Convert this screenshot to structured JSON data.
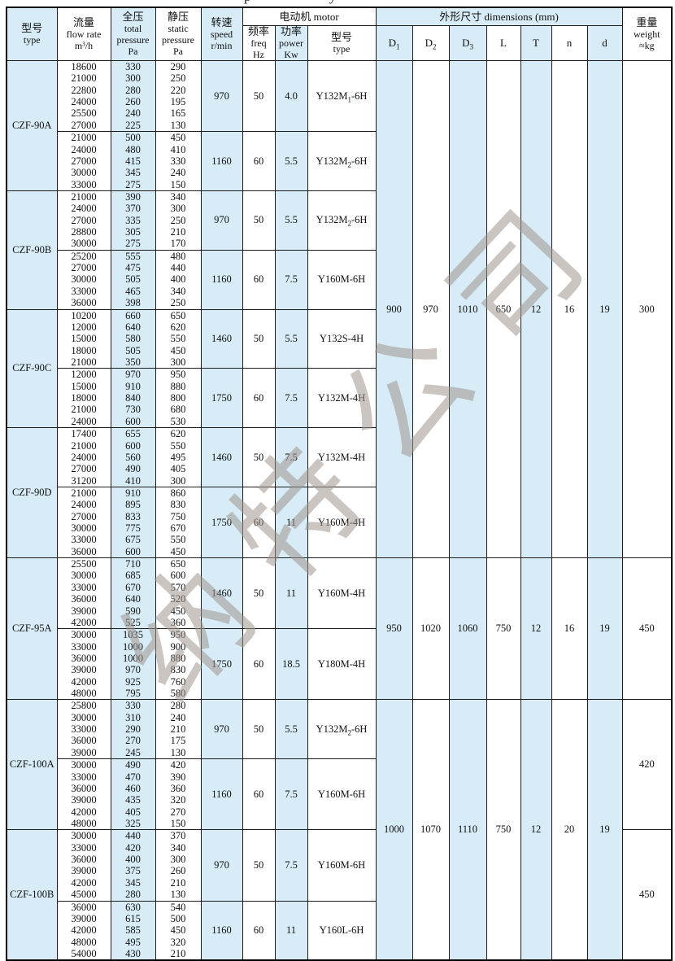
{
  "page": {
    "top_fragment": "p y"
  },
  "colors": {
    "cell_blue": "#d7ecf7",
    "grid": "#1c1c1c",
    "watermark": "#9e968e"
  },
  "watermark_text": "纳特公司",
  "table": {
    "headers": {
      "model_cn": "型号",
      "model_en": "type",
      "flow_cn": "流量",
      "flow_en": "flow rate",
      "flow_unit": "m³/h",
      "total_cn": "全压",
      "total_en1": "total",
      "total_en2": "pressure",
      "total_unit": "Pa",
      "static_cn": "静压",
      "static_en1": "static",
      "static_en2": "pressure",
      "static_unit": "Pa",
      "speed_cn": "转速",
      "speed_en": "speed",
      "speed_unit": "r/min",
      "motor_group": "电动机  motor",
      "freq_cn": "频率",
      "freq_en": "freq",
      "freq_unit": "Hz",
      "power_cn": "功率",
      "power_en": "power",
      "power_unit": "Kw",
      "motor_type_cn": "型号",
      "motor_type_en": "type",
      "dims_group": "外形尺寸   dimensions (mm)",
      "dims": [
        "D_1",
        "D_2",
        "D_3",
        "L",
        "T",
        "n",
        "d"
      ],
      "weight_cn": "重量",
      "weight_en": "weight",
      "weight_unit": "≈kg"
    },
    "sections": [
      {
        "model": "CZF-90A",
        "blocks": [
          {
            "flow": [
              "18600",
              "21000",
              "22800",
              "24000",
              "25500",
              "27000"
            ],
            "total": [
              "330",
              "300",
              "280",
              "260",
              "240",
              "225"
            ],
            "static": [
              "290",
              "250",
              "220",
              "195",
              "165",
              "130"
            ],
            "speed": "970",
            "freq": "50",
            "power": "4.0",
            "motor": "Y132M_1-6H"
          },
          {
            "flow": [
              "21000",
              "24000",
              "27000",
              "30000",
              "33000"
            ],
            "total": [
              "500",
              "480",
              "415",
              "345",
              "275"
            ],
            "static": [
              "450",
              "410",
              "330",
              "240",
              "150"
            ],
            "speed": "1160",
            "freq": "60",
            "power": "5.5",
            "motor": "Y132M_2-6H"
          }
        ]
      },
      {
        "model": "CZF-90B",
        "blocks": [
          {
            "flow": [
              "21000",
              "24000",
              "27000",
              "28800",
              "30000"
            ],
            "total": [
              "390",
              "370",
              "335",
              "305",
              "275"
            ],
            "static": [
              "340",
              "300",
              "250",
              "210",
              "170"
            ],
            "speed": "970",
            "freq": "50",
            "power": "5.5",
            "motor": "Y132M_2-6H"
          },
          {
            "flow": [
              "25200",
              "27000",
              "30000",
              "33000",
              "36000"
            ],
            "total": [
              "555",
              "475",
              "505",
              "465",
              "398"
            ],
            "static": [
              "480",
              "440",
              "400",
              "340",
              "250"
            ],
            "speed": "1160",
            "freq": "60",
            "power": "7.5",
            "motor": "Y160M-6H"
          }
        ]
      },
      {
        "model": "CZF-90C",
        "blocks": [
          {
            "flow": [
              "10200",
              "12000",
              "15000",
              "18000",
              "21000"
            ],
            "total": [
              "660",
              "640",
              "580",
              "505",
              "350"
            ],
            "static": [
              "650",
              "620",
              "550",
              "450",
              "300"
            ],
            "speed": "1460",
            "freq": "50",
            "power": "5.5",
            "motor": "Y132S-4H"
          },
          {
            "flow": [
              "12000",
              "15000",
              "18000",
              "21000",
              "24000"
            ],
            "total": [
              "970",
              "910",
              "840",
              "730",
              "600"
            ],
            "static": [
              "950",
              "880",
              "800",
              "680",
              "530"
            ],
            "speed": "1750",
            "freq": "60",
            "power": "7.5",
            "motor": "Y132M-4H"
          }
        ]
      },
      {
        "model": "CZF-90D",
        "blocks": [
          {
            "flow": [
              "17400",
              "21000",
              "24000",
              "27000",
              "31200"
            ],
            "total": [
              "655",
              "600",
              "560",
              "490",
              "410"
            ],
            "static": [
              "620",
              "550",
              "495",
              "405",
              "300"
            ],
            "speed": "1460",
            "freq": "50",
            "power": "7.5",
            "motor": "Y132M-4H"
          },
          {
            "flow": [
              "21000",
              "24000",
              "27000",
              "30000",
              "33000",
              "36000"
            ],
            "total": [
              "910",
              "895",
              "833",
              "775",
              "675",
              "600"
            ],
            "static": [
              "860",
              "830",
              "750",
              "670",
              "550",
              "450"
            ],
            "speed": "1750",
            "freq": "60",
            "power": "11",
            "motor": "Y160M-4H"
          }
        ]
      },
      {
        "model": "CZF-95A",
        "blocks": [
          {
            "flow": [
              "25500",
              "30000",
              "33000",
              "36000",
              "39000",
              "42000"
            ],
            "total": [
              "710",
              "685",
              "670",
              "640",
              "590",
              "525"
            ],
            "static": [
              "650",
              "600",
              "570",
              "520",
              "450",
              "360"
            ],
            "speed": "1460",
            "freq": "50",
            "power": "11",
            "motor": "Y160M-4H"
          },
          {
            "flow": [
              "30000",
              "33000",
              "36000",
              "39000",
              "42000",
              "48000"
            ],
            "total": [
              "1035",
              "1000",
              "1000",
              "970",
              "925",
              "795"
            ],
            "static": [
              "950",
              "900",
              "880",
              "830",
              "760",
              "580"
            ],
            "speed": "1750",
            "freq": "60",
            "power": "18.5",
            "motor": "Y180M-4H"
          }
        ]
      },
      {
        "model": "CZF-100A",
        "blocks": [
          {
            "flow": [
              "25800",
              "30000",
              "33000",
              "36000",
              "39000"
            ],
            "total": [
              "330",
              "310",
              "290",
              "270",
              "245"
            ],
            "static": [
              "280",
              "240",
              "210",
              "175",
              "130"
            ],
            "speed": "970",
            "freq": "50",
            "power": "5.5",
            "motor": "Y132M_2-6H"
          },
          {
            "flow": [
              "30000",
              "33000",
              "36000",
              "39000",
              "42000",
              "48000"
            ],
            "total": [
              "490",
              "470",
              "460",
              "435",
              "405",
              "325"
            ],
            "static": [
              "420",
              "390",
              "360",
              "320",
              "270",
              "150"
            ],
            "speed": "1160",
            "freq": "60",
            "power": "7.5",
            "motor": "Y160M-6H"
          }
        ]
      },
      {
        "model": "CZF-100B",
        "blocks": [
          {
            "flow": [
              "30000",
              "33000",
              "36000",
              "39000",
              "42000",
              "45000"
            ],
            "total": [
              "440",
              "420",
              "400",
              "375",
              "345",
              "280"
            ],
            "static": [
              "370",
              "340",
              "300",
              "260",
              "210",
              "130"
            ],
            "speed": "970",
            "freq": "50",
            "power": "7.5",
            "motor": "Y160M-6H"
          },
          {
            "flow": [
              "36000",
              "39000",
              "42000",
              "48000",
              "54000"
            ],
            "total": [
              "630",
              "615",
              "585",
              "495",
              "430"
            ],
            "static": [
              "540",
              "500",
              "450",
              "320",
              "210"
            ],
            "speed": "1160",
            "freq": "60",
            "power": "11",
            "motor": "Y160L-6H"
          }
        ]
      }
    ],
    "dim_groups": [
      {
        "start": 0,
        "span": 8,
        "values": [
          "900",
          "970",
          "1010",
          "650",
          "12",
          "16",
          "19"
        ],
        "weights": [
          {
            "start": 0,
            "span": 8,
            "value": "300"
          }
        ]
      },
      {
        "start": 8,
        "span": 2,
        "values": [
          "950",
          "1020",
          "1060",
          "750",
          "12",
          "16",
          "19"
        ],
        "weights": [
          {
            "start": 8,
            "span": 2,
            "value": "450"
          }
        ]
      },
      {
        "start": 10,
        "span": 4,
        "values": [
          "1000",
          "1070",
          "1110",
          "750",
          "12",
          "20",
          "19"
        ],
        "weights": [
          {
            "start": 10,
            "span": 2,
            "value": "420"
          },
          {
            "start": 12,
            "span": 2,
            "value": "450"
          }
        ]
      }
    ]
  }
}
